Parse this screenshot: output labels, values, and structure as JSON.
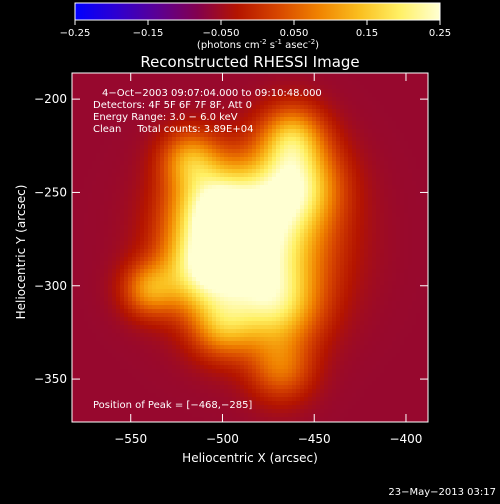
{
  "colorbar": {
    "ticks": [
      "-0.25",
      "-0.15",
      "-0.050",
      "0.050",
      "0.15",
      "0.25"
    ],
    "unit_parts": [
      "(photons cm",
      "-2",
      " s",
      "-1",
      " asec",
      "-2",
      ")"
    ],
    "colors": [
      "#0000ff",
      "#2d00d2",
      "#5a0096",
      "#820050",
      "#b41400",
      "#d74600",
      "#f08200",
      "#fabe1e",
      "#fff064",
      "#ffffd2"
    ]
  },
  "chart_data": {
    "type": "heatmap",
    "title": "Reconstructed RHESSI Image",
    "xlabel": "Heliocentric X (arcsec)",
    "ylabel": "Heliocentric Y (arcsec)",
    "xlim": [
      -582,
      -388
    ],
    "ylim": [
      -373,
      -186
    ],
    "xticks": [
      -550,
      -500,
      -450,
      -400
    ],
    "yticks": [
      -200,
      -250,
      -300,
      -350
    ],
    "xtick_labels": [
      "−550",
      "−500",
      "−450",
      "−400"
    ],
    "ytick_labels": [
      "−200",
      "−250",
      "−300",
      "−350"
    ],
    "value_range": [
      -0.25,
      0.25
    ],
    "peak": [
      -468,
      -285
    ],
    "annotations": [
      "4−Oct−2003 09:07:04.000 to 09:10:48.000",
      "Detectors: 4F 5F 6F 7F 8F, Att 0",
      "Energy Range: 3.0 − 6.0 keV",
      "Clean     Total counts: 3.89E+04",
      "Position of Peak = [−468,−285]"
    ],
    "sources": [
      {
        "x": -483,
        "y": -277,
        "peak": 0.25,
        "sigma": 26
      },
      {
        "x": -460,
        "y": -245,
        "peak": 0.15,
        "sigma": 16
      },
      {
        "x": -462,
        "y": -220,
        "peak": 0.1,
        "sigma": 12
      },
      {
        "x": -505,
        "y": -258,
        "peak": 0.14,
        "sigma": 16
      },
      {
        "x": -512,
        "y": -292,
        "peak": 0.12,
        "sigma": 15
      },
      {
        "x": -470,
        "y": -312,
        "peak": 0.1,
        "sigma": 16
      },
      {
        "x": -540,
        "y": -302,
        "peak": 0.08,
        "sigma": 10
      },
      {
        "x": -500,
        "y": -322,
        "peak": 0.07,
        "sigma": 12
      },
      {
        "x": -518,
        "y": -232,
        "peak": 0.08,
        "sigma": 11
      },
      {
        "x": -468,
        "y": -345,
        "peak": 0.05,
        "sigma": 12
      }
    ]
  },
  "timestamp": "23−May−2013 03:17"
}
